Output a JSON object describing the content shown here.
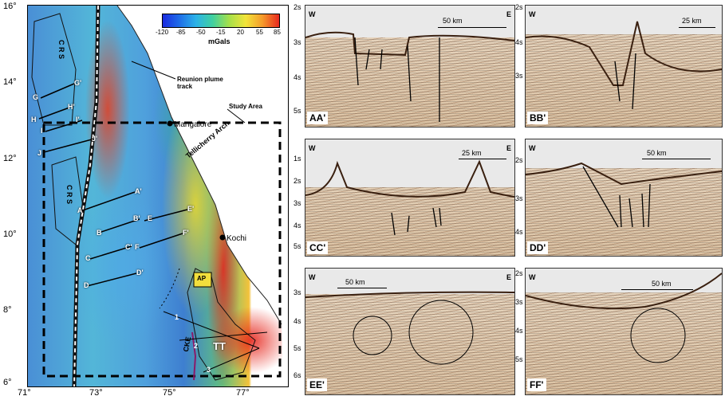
{
  "map": {
    "lat_labels": [
      "16°",
      "14°",
      "12°",
      "10°",
      "8°",
      "6°"
    ],
    "lon_labels": [
      "71°",
      "73°",
      "75°",
      "77°"
    ],
    "colorbar": {
      "ticks": [
        "-120",
        "-85",
        "-50",
        "-15",
        "20",
        "55",
        "85"
      ],
      "unit": "mGals"
    },
    "annotations": {
      "reunion": "Reunion plume\ntrack",
      "study_area": "Study Area",
      "mangalore": "Mangalore",
      "kochi": "Kochi",
      "tellicherry": "Tellicherry Arch",
      "crs1": "C R S",
      "crs2": "C R S",
      "ap": "AP",
      "cke": "CKE",
      "tt": "TT",
      "n1": "1",
      "n2": "2",
      "n3": "3"
    },
    "profiles": {
      "G": "G",
      "Gp": "G'",
      "H": "H",
      "Hp": "H'",
      "I": "I",
      "Ip": "I'",
      "J": "J",
      "Jp": "J'",
      "A": "A",
      "Ap": "A'",
      "B": "B",
      "Bp": "B'",
      "E": "E",
      "Ep": "E'",
      "C": "C",
      "Cp": "C'",
      "F": "F",
      "Fp": "F'",
      "D": "D",
      "Dp": "D'"
    }
  },
  "panels": {
    "AA": {
      "label": "AA'",
      "west": "W",
      "east": "E",
      "scale": "50 km",
      "times": [
        "2s",
        "3s",
        "4s",
        "5s"
      ]
    },
    "BB": {
      "label": "BB'",
      "west": "W",
      "scale": "25 km",
      "times": [
        "2s",
        "3s",
        "4s"
      ]
    },
    "CC": {
      "label": "CC'",
      "west": "W",
      "east": "E",
      "scale": "25 km",
      "times": [
        "1s",
        "2s",
        "3s",
        "4s",
        "5s"
      ]
    },
    "DD": {
      "label": "DD'",
      "west": "W",
      "scale": "50 km",
      "times": [
        "2s",
        "3s",
        "4s"
      ]
    },
    "EE": {
      "label": "EE'",
      "west": "W",
      "east": "E",
      "scale": "50 km",
      "times": [
        "3s",
        "4s",
        "5s",
        "6s"
      ]
    },
    "FF": {
      "label": "FF'",
      "west": "W",
      "scale": "50 km",
      "times": [
        "2s",
        "3s",
        "4s",
        "5s"
      ]
    }
  }
}
